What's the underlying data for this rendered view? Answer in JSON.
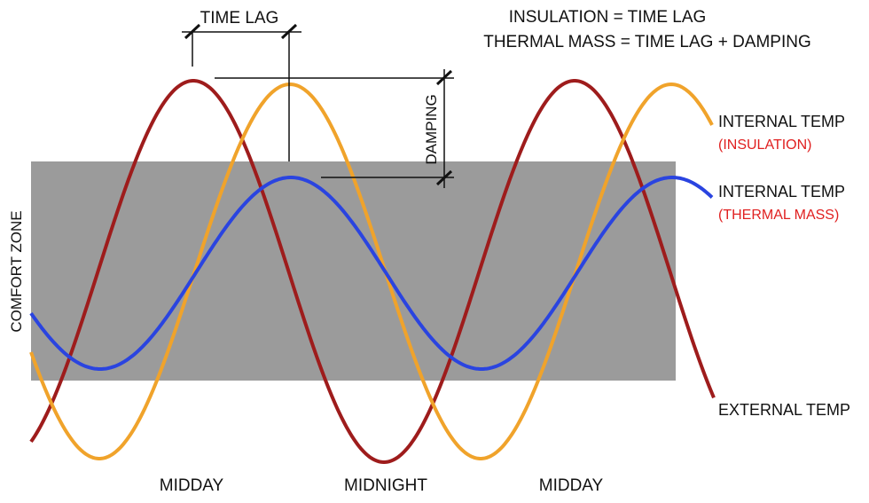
{
  "header": {
    "line1": "INSULATION = TIME LAG",
    "line2": "THERMAL MASS = TIME LAG + DAMPING"
  },
  "annotations": {
    "time_lag": "TIME LAG",
    "damping": "DAMPING",
    "comfort_zone": "COMFORT ZONE"
  },
  "x_labels": [
    "MIDDAY",
    "MIDNIGHT",
    "MIDDAY"
  ],
  "legend": [
    {
      "id": "insulation",
      "title": "INTERNAL TEMP",
      "subtitle": "(INSULATION)",
      "color": "#f0a32b"
    },
    {
      "id": "thermal-mass",
      "title": "INTERNAL TEMP",
      "subtitle": "(THERMAL MASS)",
      "color": "#2a44e0"
    },
    {
      "id": "external",
      "title": "EXTERNAL TEMP",
      "subtitle": "",
      "color": "#9e1c1c"
    }
  ],
  "colors": {
    "comfort_zone": "#9b9b9b",
    "subtitle_text": "#e02020",
    "text": "#111111",
    "guide_line": "#111111"
  }
}
